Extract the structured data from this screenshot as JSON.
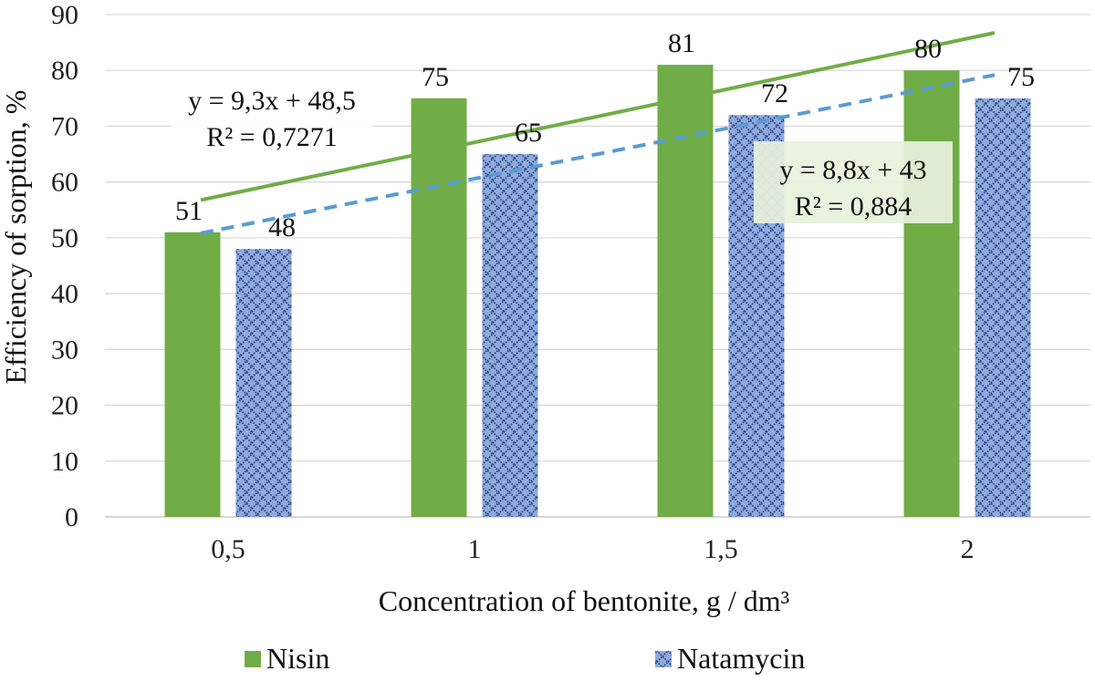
{
  "chart_data": {
    "type": "bar",
    "categories": [
      "0,5",
      "1",
      "1,5",
      "2"
    ],
    "series": [
      {
        "name": "Nisin",
        "values": [
          51,
          75,
          81,
          80
        ],
        "color": "#70ad47",
        "pattern": "solid"
      },
      {
        "name": "Natamycin",
        "values": [
          48,
          65,
          72,
          75
        ],
        "color": "#8faadc",
        "pattern": "diamond-lattice",
        "pattern_color": "#1f3a78"
      }
    ],
    "trendlines": [
      {
        "series": "Nisin",
        "equation": "y = 9,3x + 48,5",
        "r2": "R² = 0,7271",
        "slope": 9.3,
        "intercept": 48.5,
        "color": "#70ad47",
        "style": "solid"
      },
      {
        "series": "Natamycin",
        "equation": "y = 8,8x + 43",
        "r2": "R² = 0,884",
        "slope": 8.8,
        "intercept": 43,
        "color": "#5b9bd5",
        "style": "dashed"
      }
    ],
    "xlabel": "Concentration of bentonite, g / dm³",
    "ylabel": "Efficiency of sorption, %",
    "ylim": [
      0,
      90
    ],
    "yticks": [
      0,
      10,
      20,
      30,
      40,
      50,
      60,
      70,
      80,
      90
    ],
    "grid": true,
    "legend": "bottom"
  }
}
